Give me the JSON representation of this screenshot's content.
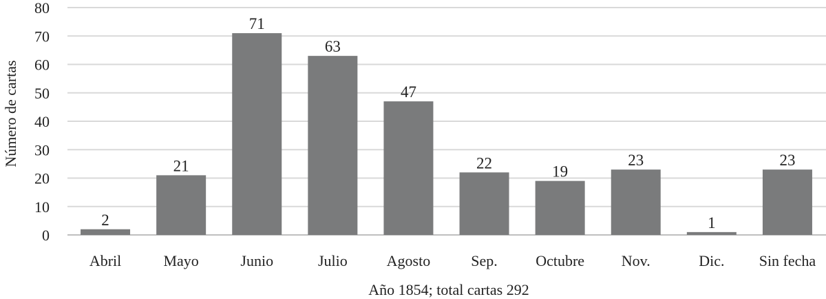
{
  "chart_data": {
    "type": "bar",
    "categories": [
      "Abril",
      "Mayo",
      "Junio",
      "Julio",
      "Agosto",
      "Sep.",
      "Octubre",
      "Nov.",
      "Dic.",
      "Sin fecha"
    ],
    "values": [
      2,
      21,
      71,
      63,
      47,
      22,
      19,
      23,
      1,
      23
    ],
    "xlabel": "Año 1854; total cartas 292",
    "ylabel": "Número de cartas",
    "ylim": [
      0,
      80
    ],
    "yticks": [
      0,
      10,
      20,
      30,
      40,
      50,
      60,
      70,
      80
    ],
    "grid": true,
    "data_labels": true,
    "bar_color": "#7a7b7c",
    "legend": "none"
  }
}
